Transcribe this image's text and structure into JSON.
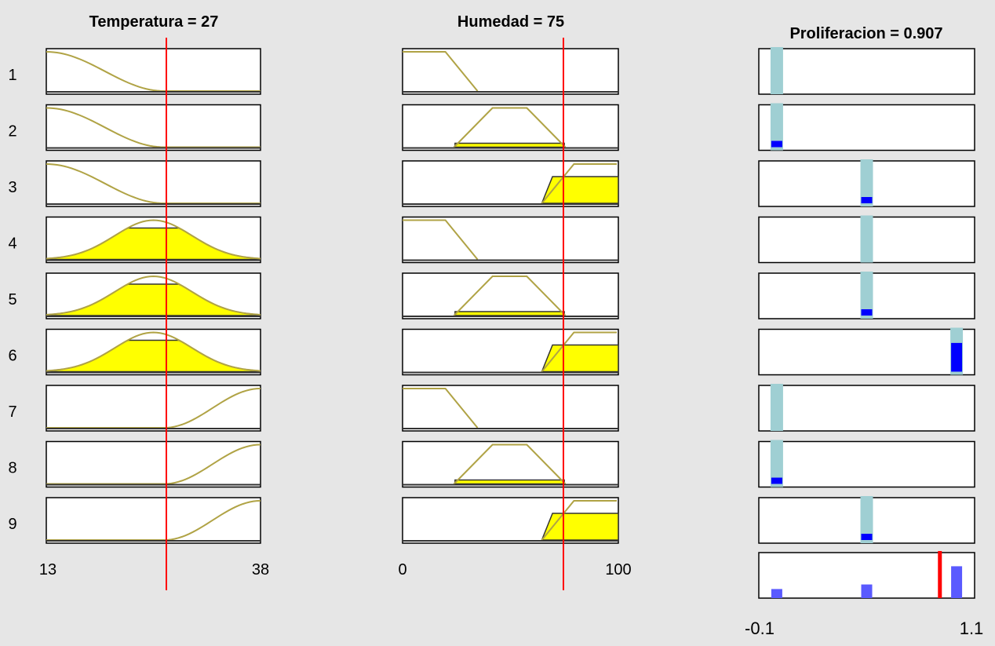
{
  "inputs": [
    {
      "name": "Temperatura",
      "value": "27",
      "title": "Temperatura = 27",
      "range": [
        13,
        38
      ],
      "ticks": [
        "13",
        "38"
      ]
    },
    {
      "name": "Humedad",
      "value": "75",
      "title": "Humedad = 75",
      "range": [
        0,
        100
      ],
      "ticks": [
        "0",
        "100"
      ]
    }
  ],
  "output": {
    "name": "Proliferacion",
    "value": "0.907",
    "title": "Proliferacion = 0.907",
    "range": [
      -0.1,
      1.1
    ],
    "ticks": [
      "-0.1",
      "1.1"
    ]
  },
  "rule_numbers": [
    "1",
    "2",
    "3",
    "4",
    "5",
    "6",
    "7",
    "8",
    "9"
  ],
  "colors": {
    "background": "#e6e6e6",
    "mf_line": "#b0a345",
    "fill": "#ffff00",
    "marker": "#ff0000",
    "output_bar": "#9fcfd3",
    "output_fill": "#0000ff",
    "aggregate": "#5a5aff"
  },
  "rules": [
    {
      "temp_mf": "s-low",
      "hum_mf": "trap-low",
      "hum_fired": false,
      "temp_fired": false,
      "out_center": 0.0,
      "firing": 0.0
    },
    {
      "temp_mf": "s-low",
      "hum_mf": "trap-mid",
      "hum_fired": true,
      "temp_fired": false,
      "out_center": 0.0,
      "firing": 0.05
    },
    {
      "temp_mf": "s-low",
      "hum_mf": "trap-high",
      "hum_fired": true,
      "temp_fired": false,
      "out_center": 0.5,
      "firing": 0.05
    },
    {
      "temp_mf": "gauss-mid",
      "hum_mf": "trap-low",
      "hum_fired": false,
      "temp_fired": true,
      "out_center": 0.5,
      "firing": 0.0
    },
    {
      "temp_mf": "gauss-mid",
      "hum_mf": "trap-mid",
      "hum_fired": true,
      "temp_fired": true,
      "out_center": 0.5,
      "firing": 0.05
    },
    {
      "temp_mf": "gauss-mid",
      "hum_mf": "trap-high",
      "hum_fired": true,
      "temp_fired": true,
      "out_center": 1.0,
      "firing": 0.7
    },
    {
      "temp_mf": "s-high",
      "hum_mf": "trap-low",
      "hum_fired": false,
      "temp_fired": false,
      "out_center": 0.0,
      "firing": 0.0
    },
    {
      "temp_mf": "s-high",
      "hum_mf": "trap-mid",
      "hum_fired": true,
      "temp_fired": false,
      "out_center": 0.0,
      "firing": 0.05
    },
    {
      "temp_mf": "s-high",
      "hum_mf": "trap-high",
      "hum_fired": true,
      "temp_fired": false,
      "out_center": 0.5,
      "firing": 0.05
    }
  ],
  "aggregate": [
    {
      "center": 0.0,
      "height": 0.2
    },
    {
      "center": 0.5,
      "height": 0.3
    },
    {
      "center": 1.0,
      "height": 0.7
    }
  ]
}
